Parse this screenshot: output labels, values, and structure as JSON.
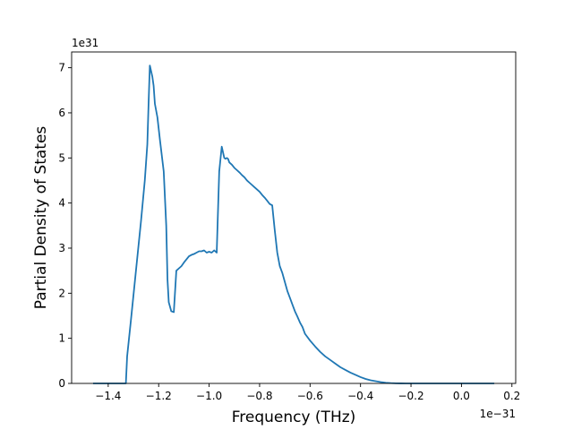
{
  "chart_data": {
    "type": "line",
    "title": "",
    "xlabel": "Frequency (THz)",
    "ylabel": "Partial Density of States",
    "x_offset_label": "1e−31",
    "y_offset_label": "1e31",
    "x_scale_factor": 1e-31,
    "y_scale_factor": 1e+31,
    "xlim": [
      -1.545,
      0.215
    ],
    "ylim": [
      0,
      7.35
    ],
    "xticks": [
      -1.4,
      -1.2,
      -1.0,
      -0.8,
      -0.6,
      -0.4,
      -0.2,
      0.0,
      0.2
    ],
    "xtick_labels": [
      "−1.4",
      "−1.2",
      "−1.0",
      "−0.8",
      "−0.6",
      "−0.4",
      "−0.2",
      "0.0",
      "0.2"
    ],
    "yticks": [
      0,
      1,
      2,
      3,
      4,
      5,
      6,
      7
    ],
    "ytick_labels": [
      "0",
      "1",
      "2",
      "3",
      "4",
      "5",
      "6",
      "7"
    ],
    "grid": false,
    "legend": "none",
    "color": "#1f77b4",
    "series": [
      {
        "x": [
          -1.46,
          -1.33,
          -1.325,
          -1.31,
          -1.29,
          -1.27,
          -1.255,
          -1.245,
          -1.24,
          -1.235,
          -1.225,
          -1.22,
          -1.215,
          -1.205,
          -1.195,
          -1.18,
          -1.17,
          -1.165,
          -1.16,
          -1.15,
          -1.14,
          -1.13,
          -1.12,
          -1.11,
          -1.1,
          -1.09,
          -1.08,
          -1.07,
          -1.06,
          -1.05,
          -1.04,
          -1.03,
          -1.02,
          -1.01,
          -1.0,
          -0.99,
          -0.98,
          -0.97,
          -0.96,
          -0.95,
          -0.94,
          -0.935,
          -0.93,
          -0.925,
          -0.92,
          -0.91,
          -0.9,
          -0.89,
          -0.88,
          -0.87,
          -0.86,
          -0.85,
          -0.84,
          -0.83,
          -0.82,
          -0.81,
          -0.8,
          -0.79,
          -0.78,
          -0.77,
          -0.76,
          -0.75,
          -0.74,
          -0.73,
          -0.72,
          -0.71,
          -0.7,
          -0.69,
          -0.68,
          -0.67,
          -0.66,
          -0.65,
          -0.64,
          -0.63,
          -0.62,
          -0.6,
          -0.58,
          -0.56,
          -0.54,
          -0.52,
          -0.5,
          -0.48,
          -0.46,
          -0.44,
          -0.42,
          -0.4,
          -0.38,
          -0.36,
          -0.34,
          -0.32,
          -0.3,
          -0.28,
          -0.26,
          -0.24,
          -0.22,
          -0.2,
          -0.18,
          -0.16,
          -0.14,
          -0.12,
          -0.1,
          -0.08,
          -0.06,
          -0.04,
          -0.02,
          0.0,
          0.05,
          0.13
        ],
        "y": [
          0.0,
          0.0,
          0.6,
          1.4,
          2.5,
          3.6,
          4.5,
          5.3,
          6.2,
          7.05,
          6.8,
          6.6,
          6.2,
          5.9,
          5.4,
          4.7,
          3.5,
          2.3,
          1.8,
          1.6,
          1.58,
          2.5,
          2.55,
          2.6,
          2.68,
          2.75,
          2.82,
          2.85,
          2.87,
          2.9,
          2.93,
          2.93,
          2.95,
          2.9,
          2.92,
          2.9,
          2.95,
          2.9,
          4.7,
          5.25,
          5.0,
          4.98,
          5.0,
          4.98,
          4.9,
          4.85,
          4.78,
          4.73,
          4.68,
          4.62,
          4.57,
          4.5,
          4.45,
          4.4,
          4.35,
          4.3,
          4.25,
          4.18,
          4.12,
          4.05,
          3.98,
          3.95,
          3.4,
          2.9,
          2.6,
          2.45,
          2.25,
          2.05,
          1.9,
          1.75,
          1.6,
          1.48,
          1.35,
          1.25,
          1.1,
          0.95,
          0.82,
          0.7,
          0.6,
          0.52,
          0.44,
          0.36,
          0.3,
          0.24,
          0.19,
          0.14,
          0.1,
          0.07,
          0.05,
          0.03,
          0.015,
          0.007,
          0.003,
          0.001,
          0.0,
          0.0,
          0.0,
          0.0,
          0.0,
          0.0,
          0.0,
          0.0,
          0.0,
          0.0,
          0.0,
          0.0,
          0.0,
          0.0
        ]
      }
    ]
  }
}
